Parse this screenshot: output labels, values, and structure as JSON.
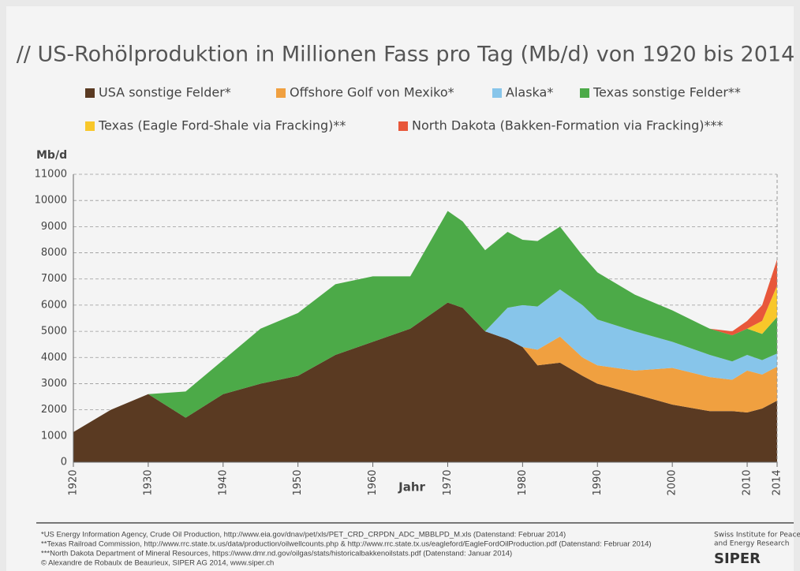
{
  "chart_data": {
    "type": "stacked_area",
    "title": "// US-Rohölproduktion in Millionen Fass pro Tag (Mb/d) von 1920 bis 2014",
    "y_label": "Mb/d",
    "x_label": "Jahr",
    "x": [
      1920,
      1925,
      1930,
      1935,
      1940,
      1945,
      1950,
      1955,
      1960,
      1965,
      1970,
      1972,
      1975,
      1978,
      1980,
      1982,
      1985,
      1988,
      1990,
      1995,
      2000,
      2005,
      2008,
      2010,
      2012,
      2014
    ],
    "series": [
      {
        "name": "USA sonstige Felder*",
        "color": "#5a3a22",
        "values": [
          1150,
          2000,
          2600,
          1700,
          2600,
          3000,
          3300,
          4100,
          4600,
          5100,
          6100,
          5900,
          5000,
          4700,
          4400,
          3700,
          3800,
          3300,
          3000,
          2600,
          2200,
          1950,
          1950,
          1900,
          2050,
          2350
        ]
      },
      {
        "name": "Offshore Golf von Mexiko*",
        "color": "#f0a040",
        "values": [
          0,
          0,
          0,
          0,
          0,
          0,
          0,
          0,
          0,
          0,
          0,
          0,
          0,
          0,
          0,
          600,
          1000,
          700,
          700,
          900,
          1400,
          1300,
          1200,
          1600,
          1300,
          1300
        ]
      },
      {
        "name": "Alaska*",
        "color": "#87c5ea",
        "values": [
          0,
          0,
          0,
          0,
          0,
          0,
          0,
          0,
          0,
          0,
          0,
          0,
          0,
          1200,
          1600,
          1650,
          1800,
          2000,
          1750,
          1500,
          1000,
          850,
          700,
          600,
          550,
          500
        ]
      },
      {
        "name": "Texas sonstige Felder**",
        "color": "#4caa48",
        "values": [
          0,
          0,
          0,
          1000,
          1300,
          2100,
          2400,
          2700,
          2500,
          2000,
          3500,
          3300,
          3100,
          2900,
          2500,
          2500,
          2400,
          1900,
          1800,
          1400,
          1200,
          1000,
          1000,
          1000,
          1000,
          1400
        ]
      },
      {
        "name": "Texas (Eagle Ford-Shale via Fracking)**",
        "color": "#f8c72a",
        "values": [
          0,
          0,
          0,
          0,
          0,
          0,
          0,
          0,
          0,
          0,
          0,
          0,
          0,
          0,
          0,
          0,
          0,
          0,
          0,
          0,
          0,
          0,
          0,
          0,
          500,
          1200
        ]
      },
      {
        "name": "North Dakota (Bakken-Formation via Fracking)***",
        "color": "#e8573a",
        "values": [
          0,
          0,
          0,
          0,
          0,
          0,
          0,
          0,
          0,
          0,
          0,
          0,
          0,
          0,
          0,
          0,
          0,
          0,
          0,
          0,
          0,
          0,
          150,
          300,
          600,
          1000
        ]
      }
    ],
    "xlim": [
      1920,
      2014
    ],
    "xticks": [
      1920,
      1930,
      1940,
      1950,
      1960,
      1970,
      1980,
      1990,
      2000,
      2010,
      2014
    ],
    "ylim": [
      0,
      11000
    ],
    "yticks": [
      0,
      1000,
      2000,
      3000,
      4000,
      5000,
      6000,
      7000,
      8000,
      9000,
      10000,
      11000
    ],
    "grid": true
  },
  "footer": {
    "notes": [
      "*US Energy Information Agency, Crude Oil Production, http://www.eia.gov/dnav/pet/xls/PET_CRD_CRPDN_ADC_MBBLPD_M.xls (Datenstand: Februar 2014)",
      "**Texas Railroad Commission, http://www.rrc.state.tx.us/data/production/oilwellcounts.php & http://www.rrc.state.tx.us/eagleford/EagleFordOilProduction.pdf (Datenstand: Februar 2014)",
      "***North Dakota Department of Mineral Resources, https://www.dmr.nd.gov/oilgas/stats/historicalbakkenoilstats.pdf (Datenstand: Januar 2014)",
      "© Alexandre de Robaulx de Beaurieux, SIPER AG 2014, www.siper.ch"
    ],
    "org": [
      "Swiss Institute for Peace",
      "and Energy Research"
    ],
    "logo": "SIPER"
  }
}
